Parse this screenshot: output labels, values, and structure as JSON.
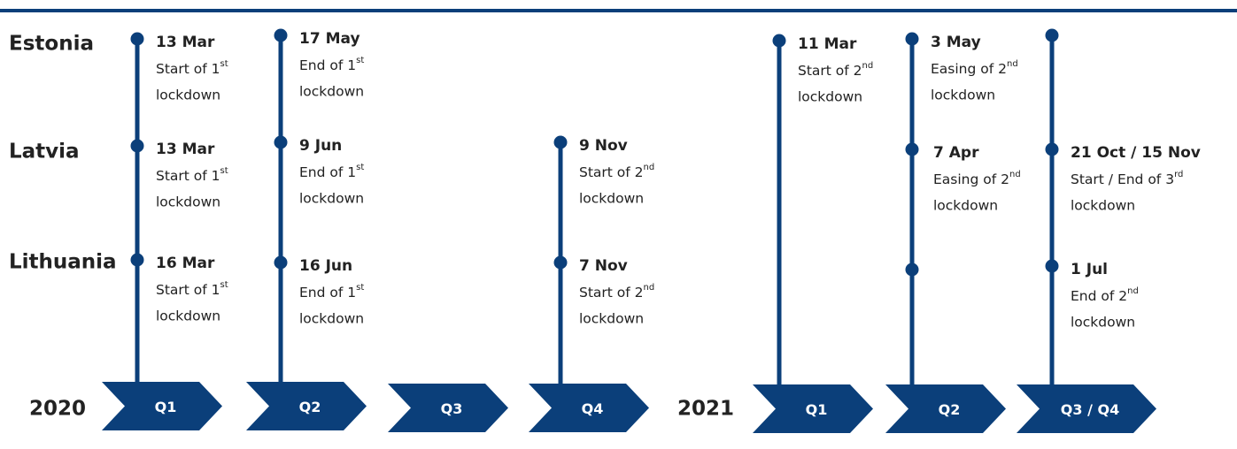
{
  "countries": [
    "Estonia",
    "Latvia",
    "Lithuania"
  ],
  "years": [
    {
      "year": "2020",
      "quarters": [
        "Q1",
        "Q2",
        "Q3",
        "Q4"
      ]
    },
    {
      "year": "2021",
      "quarters": [
        "Q1",
        "Q2",
        "Q3 / Q4"
      ]
    }
  ],
  "columns": [
    {
      "events": [
        {
          "date": "13 Mar",
          "text": "Start of 1",
          "sup": "st",
          "line2": "lockdown"
        },
        {
          "date": "13 Mar",
          "text": "Start of 1",
          "sup": "st",
          "line2": "lockdown"
        },
        {
          "date": "16 Mar",
          "text": "Start of 1",
          "sup": "st",
          "line2": "lockdown"
        }
      ]
    },
    {
      "events": [
        {
          "date": "17 May",
          "text": "End of 1",
          "sup": "st",
          "line2": "lockdown"
        },
        {
          "date": "9 Jun",
          "text": "End of 1",
          "sup": "st",
          "line2": "lockdown"
        },
        {
          "date": "16 Jun",
          "text": "End of 1",
          "sup": "st",
          "line2": "lockdown"
        }
      ]
    },
    {
      "events": [
        {
          "date": "9 Nov",
          "text": "Start of 2",
          "sup": "nd",
          "line2": "lockdown"
        },
        {
          "date": "7 Nov",
          "text": "Start of 2",
          "sup": "nd",
          "line2": "lockdown"
        }
      ]
    },
    {
      "events": [
        {
          "date": "11 Mar",
          "text": "Start of 2",
          "sup": "nd",
          "line2": "lockdown"
        }
      ]
    },
    {
      "events": [
        {
          "date": "3 May",
          "text": "Easing of 2",
          "sup": "nd",
          "line2": "lockdown"
        },
        {
          "date": "7 Apr",
          "text": "Easing of 2",
          "sup": "nd",
          "line2": "lockdown"
        }
      ]
    },
    {
      "events": [
        {
          "date": "21 Oct / 15 Nov",
          "text": "Start / End of 3",
          "sup": "rd",
          "line2": "lockdown"
        },
        {
          "date": "1 Jul",
          "text": "End of 2",
          "sup": "nd",
          "line2": "lockdown"
        }
      ]
    }
  ]
}
